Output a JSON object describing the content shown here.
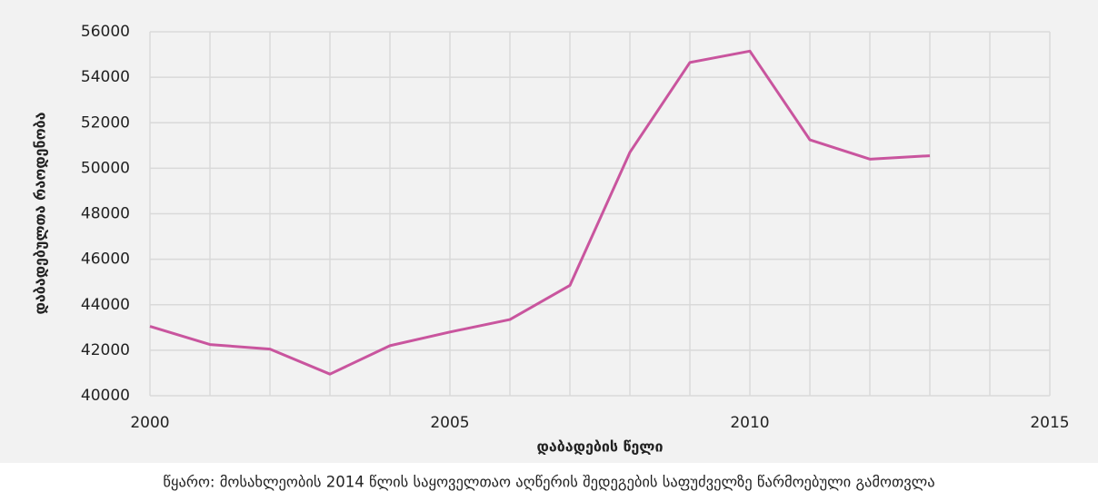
{
  "chart_data": {
    "type": "line",
    "x": [
      2000,
      2001,
      2002,
      2003,
      2004,
      2005,
      2006,
      2007,
      2008,
      2009,
      2010,
      2011,
      2012,
      2013
    ],
    "series": [
      {
        "color": "#c9559e",
        "values": [
          43050,
          42250,
          42050,
          40950,
          42200,
          42800,
          43350,
          44850,
          50700,
          54650,
          55150,
          51250,
          50400,
          50550
        ]
      }
    ],
    "xlim": [
      2000,
      2015
    ],
    "xticks": [
      2000,
      2005,
      2010,
      2015
    ],
    "xgrid": [
      2000,
      2001,
      2002,
      2003,
      2004,
      2005,
      2006,
      2007,
      2008,
      2009,
      2010,
      2011,
      2012,
      2013,
      2014,
      2015
    ],
    "ylim": [
      40000,
      56000
    ],
    "yticks": [
      40000,
      42000,
      44000,
      46000,
      48000,
      50000,
      52000,
      54000,
      56000
    ],
    "grid": true,
    "xlabel": "დაბადების წელი",
    "ylabel": "დაბადებულთა რაოდენობა",
    "source": "წყარო: მოსახლეობის 2014 წლის საყოველთაო აღწერის შედეგების საფუძველზე წარმოებული გამოთვლა"
  }
}
